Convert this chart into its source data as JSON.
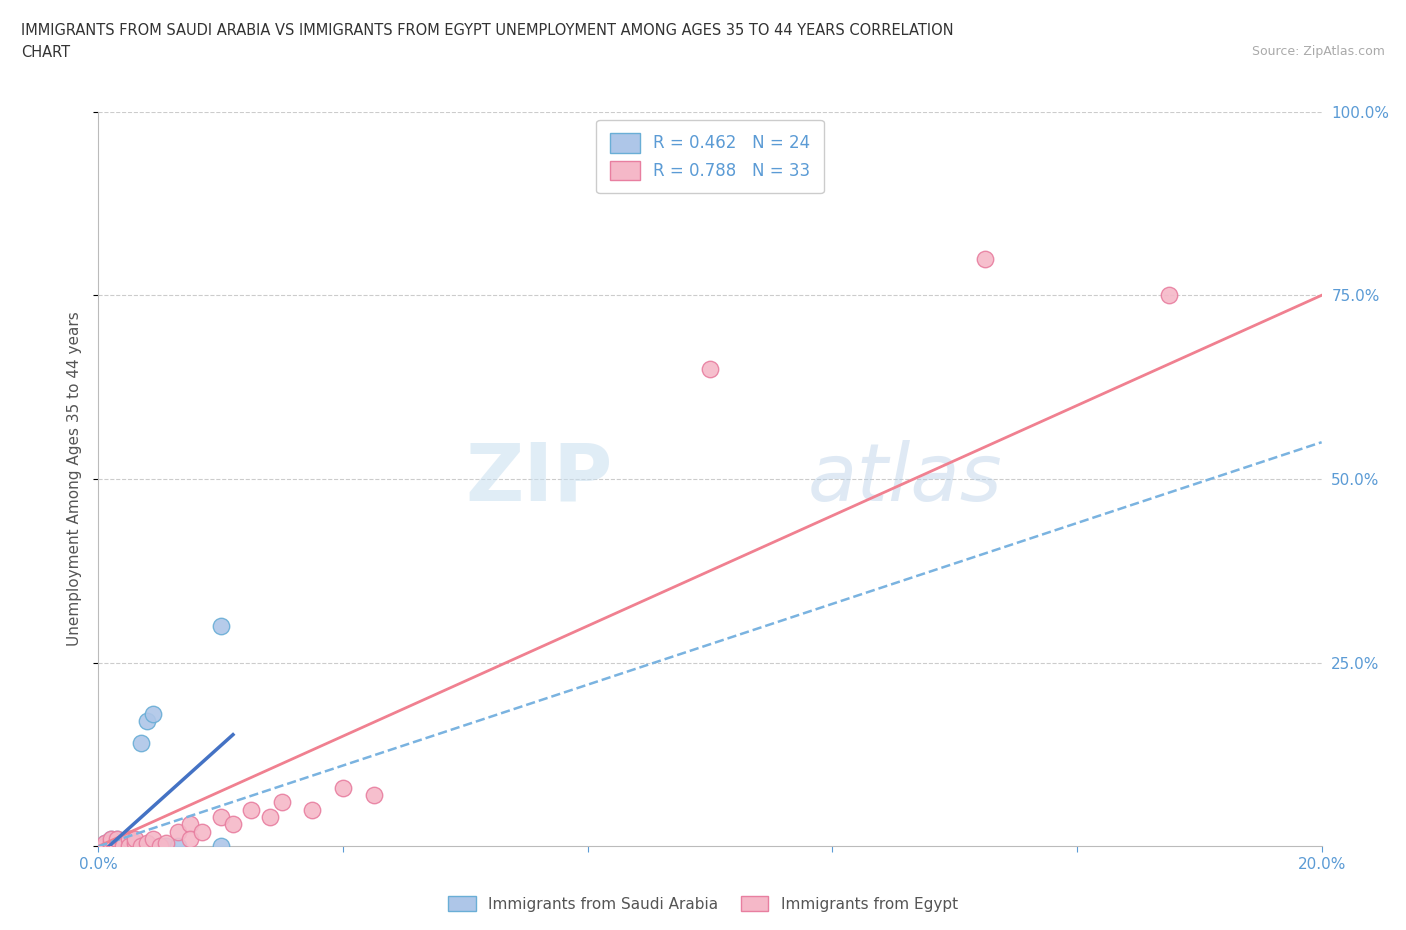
{
  "title_line1": "IMMIGRANTS FROM SAUDI ARABIA VS IMMIGRANTS FROM EGYPT UNEMPLOYMENT AMONG AGES 35 TO 44 YEARS CORRELATION",
  "title_line2": "CHART",
  "source": "Source: ZipAtlas.com",
  "ylabel": "Unemployment Among Ages 35 to 44 years",
  "x_min": 0.0,
  "x_max": 0.2,
  "y_min": 0.0,
  "y_max": 1.0,
  "saudi_color": "#aec6e8",
  "egypt_color": "#f5b8c8",
  "saudi_edge_color": "#6aaed6",
  "egypt_edge_color": "#e87fa0",
  "trendline_saudi_color": "#4472c4",
  "trendline_egypt_color": "#f08090",
  "trendline_dashed_color": "#7ab3e0",
  "r_saudi": 0.462,
  "n_saudi": 24,
  "r_egypt": 0.788,
  "n_egypt": 33,
  "watermark_zip": "ZIP",
  "watermark_atlas": "atlas",
  "saudi_x": [
    0.001,
    0.001,
    0.002,
    0.002,
    0.002,
    0.003,
    0.003,
    0.003,
    0.004,
    0.004,
    0.004,
    0.005,
    0.005,
    0.005,
    0.006,
    0.006,
    0.007,
    0.008,
    0.009,
    0.01,
    0.011,
    0.013,
    0.02,
    0.02
  ],
  "saudi_y": [
    0.0,
    0.005,
    0.0,
    0.0,
    0.01,
    0.0,
    0.005,
    0.01,
    0.0,
    0.005,
    0.0,
    0.0,
    0.005,
    0.01,
    0.0,
    0.005,
    0.14,
    0.17,
    0.18,
    0.0,
    0.0,
    0.0,
    0.3,
    0.0
  ],
  "egypt_x": [
    0.001,
    0.001,
    0.002,
    0.002,
    0.002,
    0.003,
    0.003,
    0.004,
    0.004,
    0.005,
    0.005,
    0.006,
    0.006,
    0.007,
    0.008,
    0.009,
    0.01,
    0.011,
    0.013,
    0.015,
    0.015,
    0.017,
    0.02,
    0.022,
    0.025,
    0.028,
    0.03,
    0.035,
    0.04,
    0.045,
    0.1,
    0.145,
    0.175
  ],
  "egypt_y": [
    0.0,
    0.005,
    0.0,
    0.005,
    0.01,
    0.0,
    0.01,
    0.005,
    0.0,
    0.01,
    0.0,
    0.005,
    0.01,
    0.0,
    0.005,
    0.01,
    0.0,
    0.005,
    0.02,
    0.03,
    0.01,
    0.02,
    0.04,
    0.03,
    0.05,
    0.04,
    0.06,
    0.05,
    0.08,
    0.07,
    0.65,
    0.8,
    0.75
  ]
}
